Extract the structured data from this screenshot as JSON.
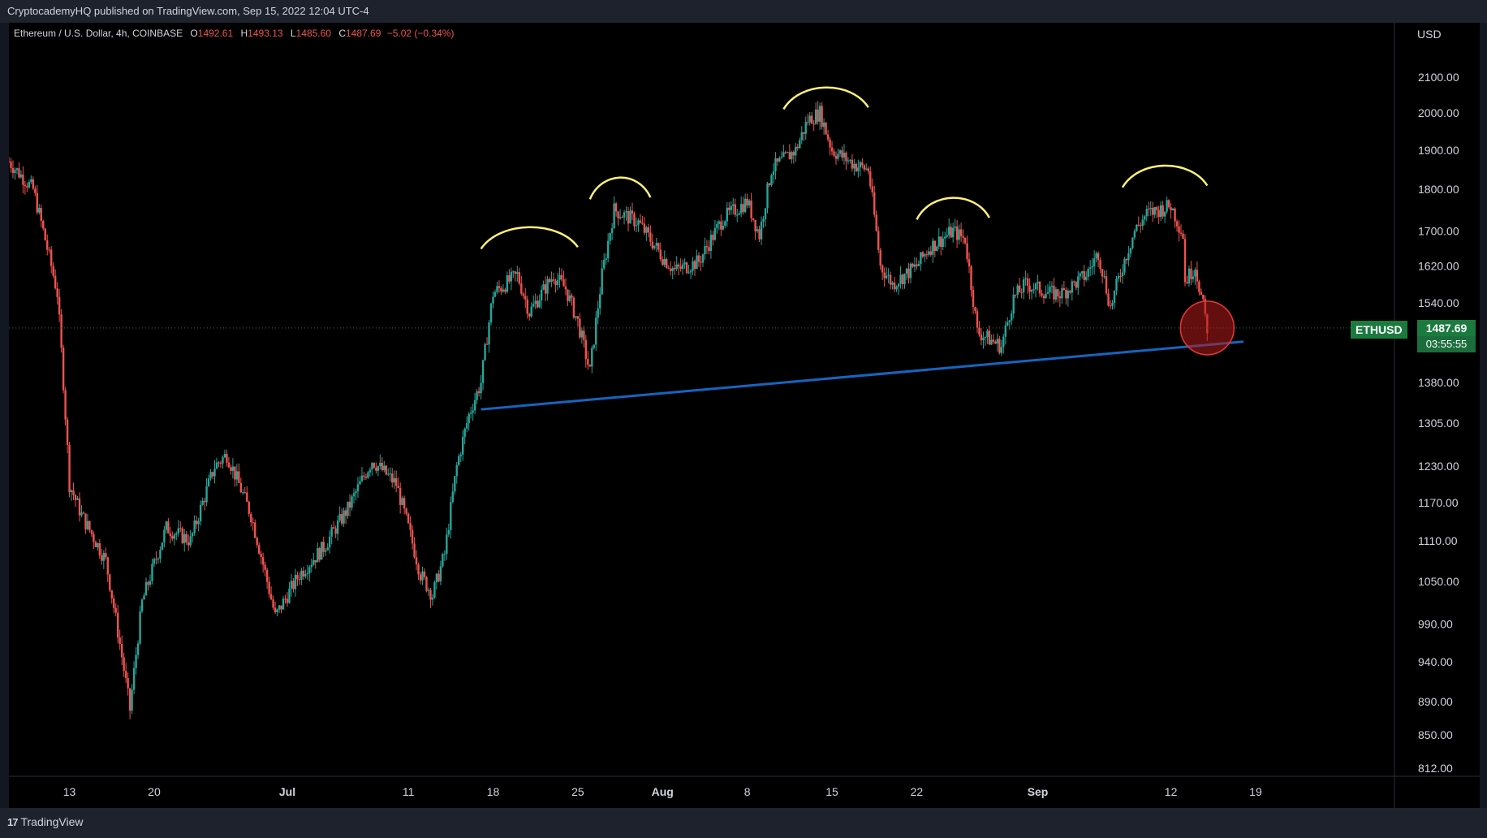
{
  "header": {
    "published_text": "CryptocademyHQ published on TradingView.com, Sep 15, 2022 12:04 UTC-4"
  },
  "legend": {
    "symbol": "Ethereum / U.S. Dollar, 4h, COINBASE",
    "open_label": "O",
    "open": "1492.61",
    "high_label": "H",
    "high": "1493.13",
    "low_label": "L",
    "low": "1485.60",
    "close_label": "C",
    "close": "1487.69",
    "change": "−5.02 (−0.34%)"
  },
  "price_axis": {
    "currency": "USD",
    "ticks": [
      "2100.00",
      "2000.00",
      "1900.00",
      "1800.00",
      "1700.00",
      "1620.00",
      "1540.00",
      "1380.00",
      "1305.00",
      "1230.00",
      "1170.00",
      "1110.00",
      "1050.00",
      "990.00",
      "940.00",
      "890.00",
      "850.00",
      "812.00"
    ]
  },
  "time_axis": {
    "ticks": [
      {
        "label": "13",
        "bold": false
      },
      {
        "label": "20",
        "bold": false
      },
      {
        "label": "Jul",
        "bold": true
      },
      {
        "label": "11",
        "bold": false
      },
      {
        "label": "18",
        "bold": false
      },
      {
        "label": "25",
        "bold": false
      },
      {
        "label": "Aug",
        "bold": true
      },
      {
        "label": "8",
        "bold": false
      },
      {
        "label": "15",
        "bold": false
      },
      {
        "label": "22",
        "bold": false
      },
      {
        "label": "Sep",
        "bold": true
      },
      {
        "label": "12",
        "bold": false
      },
      {
        "label": "19",
        "bold": false
      }
    ]
  },
  "current_price": {
    "symbol": "ETHUSD",
    "price": "1487.69",
    "countdown": "03:55:55"
  },
  "branding": {
    "logo_mark": "17",
    "logo_text": "TradingView"
  },
  "colors": {
    "up": "#26a69a",
    "down": "#ef5350",
    "trendline": "#1565c0",
    "annotation": "#fff176",
    "highlight_circle": "#b71c1c",
    "price_tag": "#1b7a3e"
  },
  "chart_data": {
    "type": "candlestick",
    "interval": "4h",
    "x_range": [
      "2022-06-08",
      "2022-09-30"
    ],
    "ylim": [
      812,
      2160
    ],
    "y_scale": "log",
    "price_path": [
      [
        "2022-06-08",
        1870
      ],
      [
        "2022-06-10",
        1800
      ],
      [
        "2022-06-12",
        1560
      ],
      [
        "2022-06-13",
        1200
      ],
      [
        "2022-06-14",
        1150
      ],
      [
        "2022-06-16",
        1080
      ],
      [
        "2022-06-18",
        880
      ],
      [
        "2022-06-19",
        1020
      ],
      [
        "2022-06-21",
        1130
      ],
      [
        "2022-06-23",
        1110
      ],
      [
        "2022-06-25",
        1230
      ],
      [
        "2022-06-26",
        1250
      ],
      [
        "2022-06-28",
        1150
      ],
      [
        "2022-06-30",
        1000
      ],
      [
        "2022-07-02",
        1060
      ],
      [
        "2022-07-04",
        1100
      ],
      [
        "2022-07-06",
        1160
      ],
      [
        "2022-07-08",
        1240
      ],
      [
        "2022-07-10",
        1200
      ],
      [
        "2022-07-12",
        1060
      ],
      [
        "2022-07-13",
        1030
      ],
      [
        "2022-07-14",
        1090
      ],
      [
        "2022-07-15",
        1230
      ],
      [
        "2022-07-16",
        1320
      ],
      [
        "2022-07-17",
        1380
      ],
      [
        "2022-07-18",
        1560
      ],
      [
        "2022-07-20",
        1600
      ],
      [
        "2022-07-21",
        1520
      ],
      [
        "2022-07-23",
        1600
      ],
      [
        "2022-07-24",
        1570
      ],
      [
        "2022-07-25",
        1500
      ],
      [
        "2022-07-26",
        1400
      ],
      [
        "2022-07-27",
        1600
      ],
      [
        "2022-07-28",
        1750
      ],
      [
        "2022-07-30",
        1720
      ],
      [
        "2022-08-01",
        1640
      ],
      [
        "2022-08-02",
        1610
      ],
      [
        "2022-08-04",
        1630
      ],
      [
        "2022-08-06",
        1730
      ],
      [
        "2022-08-08",
        1770
      ],
      [
        "2022-08-09",
        1690
      ],
      [
        "2022-08-10",
        1850
      ],
      [
        "2022-08-12",
        1900
      ],
      [
        "2022-08-13",
        1980
      ],
      [
        "2022-08-14",
        2000
      ],
      [
        "2022-08-15",
        1900
      ],
      [
        "2022-08-17",
        1860
      ],
      [
        "2022-08-18",
        1850
      ],
      [
        "2022-08-19",
        1620
      ],
      [
        "2022-08-20",
        1580
      ],
      [
        "2022-08-22",
        1620
      ],
      [
        "2022-08-23",
        1660
      ],
      [
        "2022-08-25",
        1700
      ],
      [
        "2022-08-26",
        1680
      ],
      [
        "2022-08-27",
        1480
      ],
      [
        "2022-08-29",
        1450
      ],
      [
        "2022-08-30",
        1550
      ],
      [
        "2022-08-31",
        1580
      ],
      [
        "2022-09-02",
        1560
      ],
      [
        "2022-09-03",
        1560
      ],
      [
        "2022-09-05",
        1600
      ],
      [
        "2022-09-06",
        1650
      ],
      [
        "2022-09-07",
        1530
      ],
      [
        "2022-09-08",
        1620
      ],
      [
        "2022-09-09",
        1700
      ],
      [
        "2022-09-10",
        1740
      ],
      [
        "2022-09-12",
        1760
      ],
      [
        "2022-09-13",
        1690
      ],
      [
        "2022-09-13",
        1580
      ],
      [
        "2022-09-14",
        1620
      ],
      [
        "2022-09-15",
        1487.69
      ]
    ],
    "trendline": [
      [
        "2022-07-17",
        1330
      ],
      [
        "2022-09-18",
        1460
      ]
    ],
    "annotations": [
      {
        "type": "arc",
        "span": [
          "2022-07-17",
          "2022-07-25"
        ],
        "level": 1700
      },
      {
        "type": "arc",
        "span": [
          "2022-07-26",
          "2022-07-31"
        ],
        "level": 1820
      },
      {
        "type": "arc",
        "span": [
          "2022-08-11",
          "2022-08-18"
        ],
        "level": 2060
      },
      {
        "type": "arc",
        "span": [
          "2022-08-22",
          "2022-08-28"
        ],
        "level": 1770
      },
      {
        "type": "arc",
        "span": [
          "2022-09-08",
          "2022-09-15"
        ],
        "level": 1850
      },
      {
        "type": "circle",
        "date": "2022-09-15",
        "level": 1487.69
      }
    ]
  }
}
